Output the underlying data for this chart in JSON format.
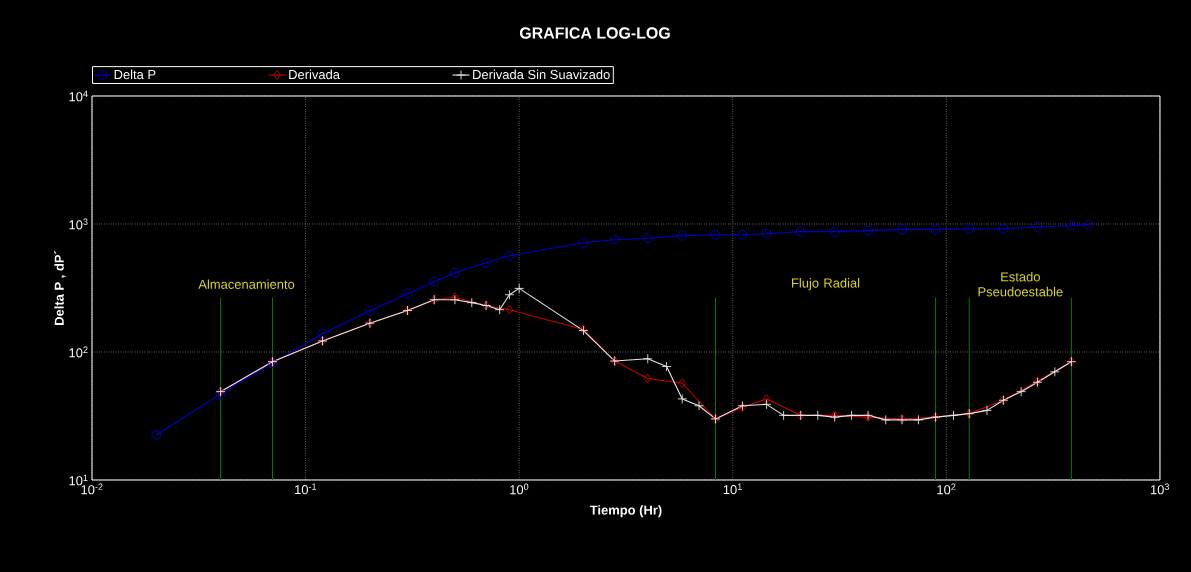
{
  "chart_data": {
    "type": "line",
    "title": "GRAFICA LOG-LOG",
    "xlabel": "Tiempo (Hr)",
    "ylabel": "Delta P , dP´",
    "log": "xy",
    "grid": true,
    "legend": "top",
    "xlim": [
      0.01,
      1000
    ],
    "ylim": [
      10,
      10000
    ],
    "xticks": [
      {
        "value": 0.01,
        "label": "10$^{-2}$"
      },
      {
        "value": 0.1,
        "label": "10$^{-1}$"
      },
      {
        "value": 1,
        "label": "10$^{0}$"
      },
      {
        "value": 10,
        "label": "10$^{1}$"
      },
      {
        "value": 100,
        "label": "10$^{2}$"
      },
      {
        "value": 1000,
        "label": "10$^{3}$"
      }
    ],
    "yticks": [
      {
        "value": 10,
        "label": "10$^{1}$"
      },
      {
        "value": 100,
        "label": "10$^{2}$"
      },
      {
        "value": 1000,
        "label": "10$^{3}$"
      },
      {
        "value": 10000,
        "label": "10$^{4}$"
      }
    ],
    "series": [
      {
        "name": "Delta P",
        "color": "#0000c8",
        "marker": "circle",
        "x": [
          0.02,
          0.04,
          0.07,
          0.12,
          0.2,
          0.3,
          0.4,
          0.5,
          0.7,
          0.9,
          2,
          2.8,
          4,
          5.8,
          8.3,
          11.1,
          14.4,
          20.8,
          30,
          43,
          62,
          89,
          128,
          185,
          267,
          385,
          463
        ],
        "values": [
          22.5,
          47,
          82,
          139,
          210,
          285,
          354,
          416,
          498,
          565,
          714,
          754,
          774,
          811,
          825,
          825,
          840,
          871,
          871,
          887,
          903,
          903,
          919,
          919,
          952,
          970,
          988
        ]
      },
      {
        "name": "Derivada",
        "color": "#c80000",
        "marker": "diamond",
        "x": [
          0.04,
          0.07,
          0.12,
          0.2,
          0.3,
          0.4,
          0.5,
          0.7,
          0.9,
          2,
          2.8,
          4,
          5.8,
          8.3,
          11.1,
          14.4,
          20.8,
          30,
          43,
          62,
          89,
          128,
          185,
          267,
          385
        ],
        "values": [
          49,
          84,
          122,
          168,
          211,
          256,
          268,
          231,
          214,
          150,
          85,
          62,
          57,
          30,
          37,
          43,
          32,
          32,
          31,
          30,
          31,
          33,
          42,
          59,
          84
        ]
      },
      {
        "name": "Derivada Sin Suavizado",
        "color": "#e6e6e6",
        "marker": "cross",
        "x": [
          0.04,
          0.07,
          0.12,
          0.2,
          0.3,
          0.4,
          0.5,
          0.6,
          0.7,
          0.81,
          0.9,
          1,
          2,
          2.8,
          4,
          4.9,
          5.8,
          6.95,
          8.3,
          11.1,
          14.4,
          17.3,
          20.8,
          25,
          30,
          36,
          43,
          52,
          62,
          74,
          89,
          108,
          128,
          155,
          185,
          224,
          267,
          322,
          385
        ],
        "values": [
          49,
          84,
          122,
          168,
          211,
          256,
          256,
          243,
          231,
          214,
          280,
          314,
          147,
          85,
          88.5,
          77,
          43,
          38,
          30,
          38,
          39,
          32,
          32,
          32,
          31,
          32,
          32,
          29.5,
          29.5,
          29.5,
          31,
          32,
          33,
          35,
          42,
          49,
          58,
          70,
          84
        ]
      }
    ],
    "ref_lines": [
      {
        "axis": "x",
        "value": 0.04,
        "color": "#007a00"
      },
      {
        "axis": "x",
        "value": 0.07,
        "color": "#007a00"
      },
      {
        "axis": "x",
        "value": 8.3,
        "color": "#007a00"
      },
      {
        "axis": "x",
        "value": 89,
        "color": "#007a00"
      },
      {
        "axis": "x",
        "value": 128,
        "color": "#007a00"
      },
      {
        "axis": "x",
        "value": 385,
        "color": "#007a00"
      }
    ],
    "annotations": [
      "Almacenamiento",
      "Flujo Radial",
      "Estado Pseudoestable"
    ]
  }
}
